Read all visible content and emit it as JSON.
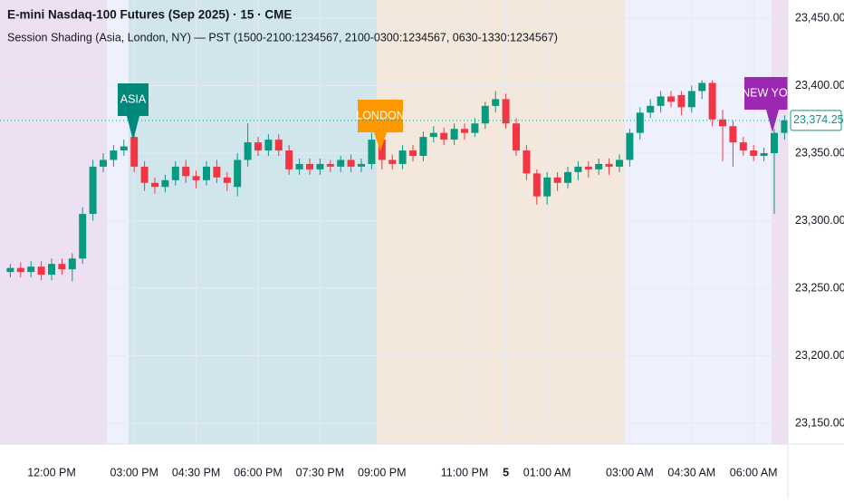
{
  "chart_data": {
    "type": "candlestick",
    "title": "E-mini Nasdaq-100 Futures (Sep 2025) · 15 · CME",
    "subtitle": "Session Shading (Asia, London, NY) — PST (1500-2100:1234567, 2100-0300:1234567, 0630-1330:1234567)",
    "categories": [
      null,
      null,
      null,
      null,
      "12:00 PM",
      null,
      null,
      null,
      null,
      null,
      null,
      null,
      "03:00 PM",
      null,
      null,
      null,
      null,
      null,
      "04:30 PM",
      null,
      null,
      null,
      null,
      null,
      "06:00 PM",
      null,
      null,
      null,
      null,
      null,
      "07:30 PM",
      null,
      null,
      null,
      null,
      null,
      "09:00 PM",
      null,
      null,
      null,
      null,
      null,
      null,
      null,
      "11:00 PM",
      null,
      null,
      null,
      "5",
      null,
      null,
      null,
      "01:00 AM",
      null,
      null,
      null,
      null,
      null,
      null,
      null,
      "03:00 AM",
      null,
      null,
      null,
      null,
      null,
      "04:30 AM",
      null,
      null,
      null,
      null,
      null,
      "06:00 AM",
      null,
      null,
      null
    ],
    "open": [
      23262,
      23265,
      23262,
      23266,
      23260,
      23268,
      23264,
      23272,
      23305,
      23340,
      23345,
      23352,
      23362,
      23340,
      23328,
      23325,
      23330,
      23340,
      23333,
      23330,
      23340,
      23332,
      23325,
      23345,
      23358,
      23352,
      23360,
      23352,
      23338,
      23342,
      23338,
      23342,
      23340,
      23345,
      23340,
      23342,
      23360,
      23345,
      23342,
      23352,
      23348,
      23362,
      23365,
      23360,
      23368,
      23365,
      23372,
      23385,
      23390,
      23372,
      23352,
      23335,
      23318,
      23332,
      23328,
      23336,
      23340,
      23338,
      23342,
      23340,
      23345,
      23365,
      23380,
      23385,
      23392,
      23393,
      23384,
      23396,
      23402,
      23375,
      23370,
      23358,
      23352,
      23348,
      23350,
      23365
    ],
    "high": [
      23268,
      23269,
      23270,
      23270,
      23272,
      23272,
      23276,
      23310,
      23345,
      23350,
      23356,
      23360,
      23366,
      23344,
      23332,
      23334,
      23344,
      23345,
      23337,
      23344,
      23345,
      23336,
      23350,
      23372,
      23362,
      23364,
      23364,
      23356,
      23346,
      23346,
      23346,
      23345,
      23348,
      23349,
      23346,
      23365,
      23364,
      23349,
      23356,
      23356,
      23366,
      23370,
      23369,
      23372,
      23372,
      23376,
      23388,
      23396,
      23394,
      23376,
      23356,
      23338,
      23336,
      23336,
      23340,
      23344,
      23344,
      23346,
      23346,
      23349,
      23368,
      23384,
      23390,
      23396,
      23396,
      23396,
      23400,
      23404,
      23404,
      23382,
      23374,
      23362,
      23356,
      23354,
      23368,
      23378
    ],
    "low": [
      23258,
      23258,
      23258,
      23256,
      23256,
      23260,
      23255,
      23268,
      23300,
      23336,
      23340,
      23348,
      23336,
      23322,
      23320,
      23321,
      23326,
      23328,
      23324,
      23326,
      23328,
      23322,
      23318,
      23340,
      23348,
      23348,
      23348,
      23334,
      23334,
      23334,
      23334,
      23336,
      23336,
      23336,
      23336,
      23338,
      23338,
      23338,
      23338,
      23344,
      23344,
      23358,
      23356,
      23356,
      23360,
      23362,
      23368,
      23380,
      23368,
      23348,
      23330,
      23312,
      23312,
      23322,
      23324,
      23330,
      23332,
      23334,
      23334,
      23336,
      23340,
      23360,
      23376,
      23380,
      23384,
      23378,
      23380,
      23390,
      23370,
      23344,
      23340,
      23348,
      23344,
      23344,
      23305,
      23360
    ],
    "close": [
      23265,
      23262,
      23266,
      23260,
      23268,
      23264,
      23272,
      23305,
      23340,
      23345,
      23352,
      23355,
      23340,
      23328,
      23325,
      23330,
      23340,
      23333,
      23330,
      23340,
      23332,
      23328,
      23345,
      23358,
      23352,
      23360,
      23352,
      23338,
      23342,
      23338,
      23342,
      23340,
      23345,
      23340,
      23342,
      23360,
      23345,
      23342,
      23352,
      23348,
      23362,
      23365,
      23360,
      23368,
      23365,
      23372,
      23385,
      23390,
      23372,
      23352,
      23335,
      23318,
      23332,
      23328,
      23336,
      23340,
      23338,
      23342,
      23340,
      23345,
      23365,
      23380,
      23385,
      23392,
      23388,
      23384,
      23396,
      23402,
      23375,
      23370,
      23358,
      23352,
      23348,
      23350,
      23365,
      23374.25
    ],
    "up_color": "#089981",
    "down_color": "#f23645",
    "ylim": [
      23134.6,
      23463.4
    ],
    "yticks": [
      {
        "value": 23150,
        "label": "23,150.00"
      },
      {
        "value": 23200,
        "label": "23,200.00"
      },
      {
        "value": 23250,
        "label": "23,250.00"
      },
      {
        "value": 23300,
        "label": "23,300.00"
      },
      {
        "value": 23350,
        "label": "23,350.00"
      },
      {
        "value": 23400,
        "label": "23,400.00"
      },
      {
        "value": 23450,
        "label": "23,450.00"
      }
    ],
    "last_price": {
      "value": 23374.25,
      "label": "23,374.25"
    },
    "grid": true,
    "annotations": [
      {
        "text": "ASIA",
        "color": "#00897b"
      },
      {
        "text": "LONDON",
        "color": "#ff9800"
      },
      {
        "text": "NEW YORK",
        "color": "#9c27b0"
      }
    ]
  }
}
